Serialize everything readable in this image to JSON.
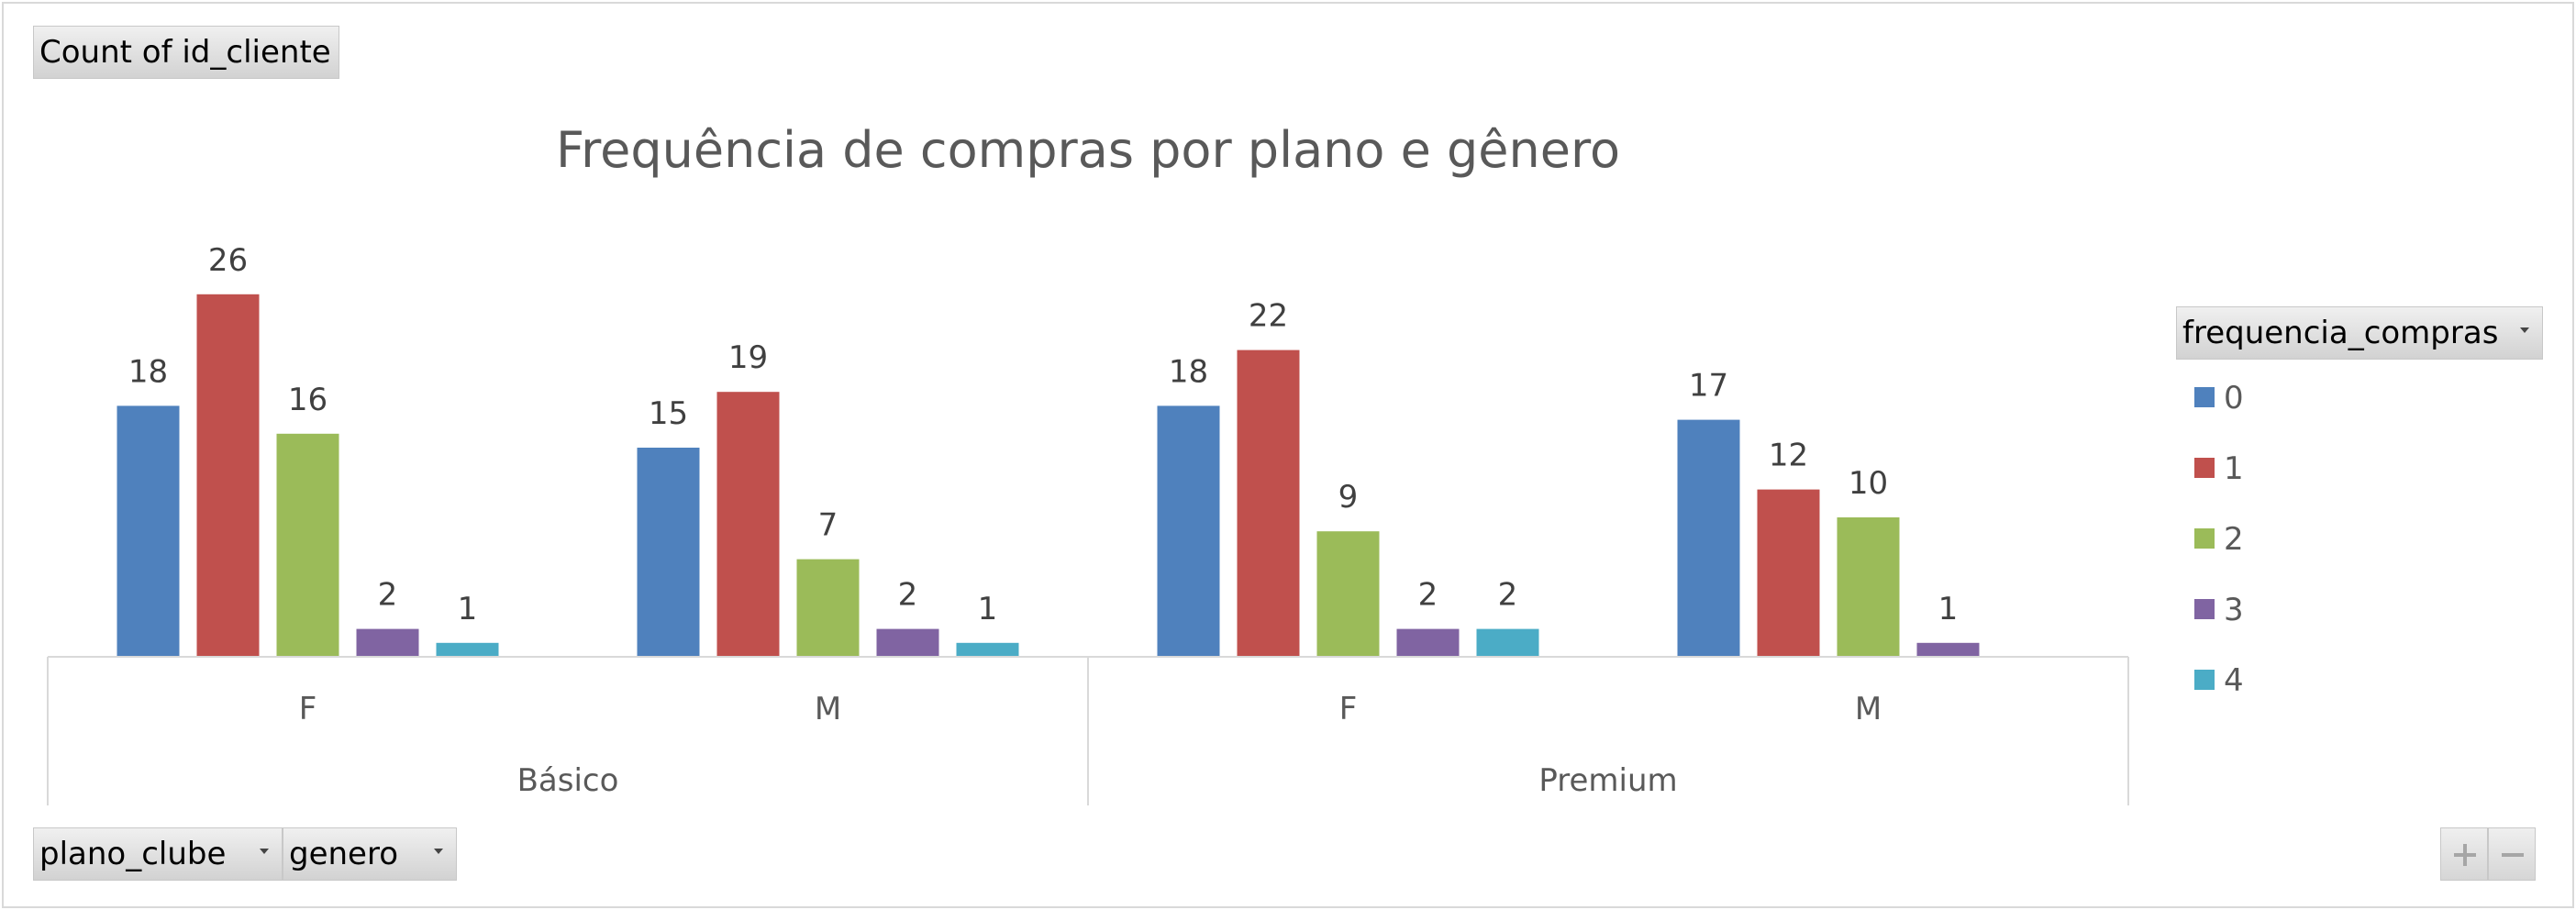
{
  "value_field_label": "Count of id_cliente",
  "row_field_buttons": [
    "plano_clube",
    "genero"
  ],
  "legend_field_label": "frequencia_compras",
  "chart_data": {
    "type": "bar",
    "title": "Frequência de compras por plano e gênero",
    "categories": [
      {
        "group": "Básico",
        "label": "F"
      },
      {
        "group": "Básico",
        "label": "M"
      },
      {
        "group": "Premium",
        "label": "F"
      },
      {
        "group": "Premium",
        "label": "M"
      }
    ],
    "series": [
      {
        "name": "0",
        "color": "#4f81bd",
        "values": [
          18,
          15,
          18,
          17
        ]
      },
      {
        "name": "1",
        "color": "#c0504d",
        "values": [
          26,
          19,
          22,
          12
        ]
      },
      {
        "name": "2",
        "color": "#9bbb59",
        "values": [
          16,
          7,
          9,
          10
        ]
      },
      {
        "name": "3",
        "color": "#8064a2",
        "values": [
          2,
          2,
          2,
          1
        ]
      },
      {
        "name": "4",
        "color": "#4bacc6",
        "values": [
          1,
          1,
          2,
          null
        ]
      }
    ],
    "legend_position": "right",
    "grid": false,
    "data_labels": true
  }
}
